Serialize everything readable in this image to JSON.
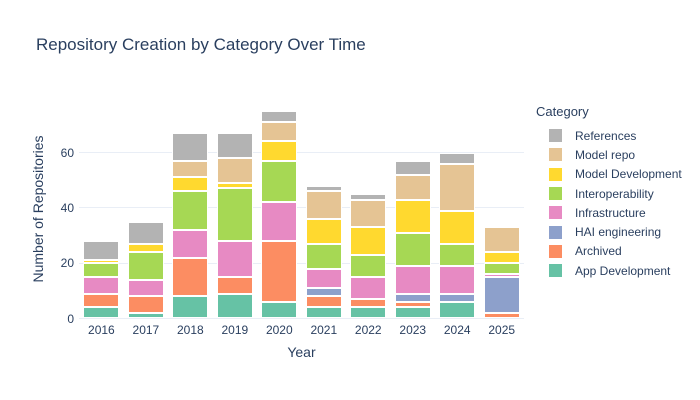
{
  "title": "Repository Creation by Category Over Time",
  "chart_data": {
    "type": "bar",
    "stacked": true,
    "title": "Repository Creation by Category Over Time",
    "xlabel": "Year",
    "ylabel": "Number of Repositories",
    "legend_title": "Category",
    "legend_position": "right",
    "grid": true,
    "ylim": [
      0,
      80
    ],
    "yticks": [
      0,
      20,
      40,
      60
    ],
    "categories": [
      "2016",
      "2017",
      "2018",
      "2019",
      "2020",
      "2021",
      "2022",
      "2023",
      "2024",
      "2025"
    ],
    "series": [
      {
        "name": "App Development",
        "color": "#66c2a5",
        "values": [
          4,
          2,
          8,
          9,
          6,
          4,
          4,
          4,
          6,
          0
        ]
      },
      {
        "name": "Archived",
        "color": "#fc8d62",
        "values": [
          5,
          6,
          14,
          6,
          22,
          4,
          3,
          2,
          0,
          2
        ]
      },
      {
        "name": "HAI engineering",
        "color": "#8da0cb",
        "values": [
          0,
          0,
          0,
          0,
          0,
          3,
          0,
          3,
          3,
          13
        ]
      },
      {
        "name": "Infrastructure",
        "color": "#e78ac3",
        "values": [
          6,
          6,
          10,
          13,
          14,
          7,
          8,
          10,
          10,
          1
        ]
      },
      {
        "name": "Interoperability",
        "color": "#a6d854",
        "values": [
          5,
          10,
          14,
          19,
          15,
          9,
          8,
          12,
          8,
          4
        ]
      },
      {
        "name": "Model Development",
        "color": "#ffd92f",
        "values": [
          1,
          3,
          5,
          2,
          7,
          9,
          10,
          12,
          12,
          4
        ]
      },
      {
        "name": "Model repo",
        "color": "#e5c494",
        "values": [
          0,
          0,
          6,
          9,
          7,
          10,
          10,
          9,
          17,
          9
        ]
      },
      {
        "name": "References",
        "color": "#b3b3b3",
        "values": [
          7,
          8,
          10,
          9,
          4,
          2,
          2,
          5,
          4,
          0
        ]
      }
    ],
    "totals": [
      28,
      35,
      67,
      67,
      75,
      48,
      45,
      57,
      60,
      33
    ]
  },
  "colors": {
    "text": "#2a3f5f",
    "grid": "#e9eef6",
    "background": "#ffffff"
  }
}
